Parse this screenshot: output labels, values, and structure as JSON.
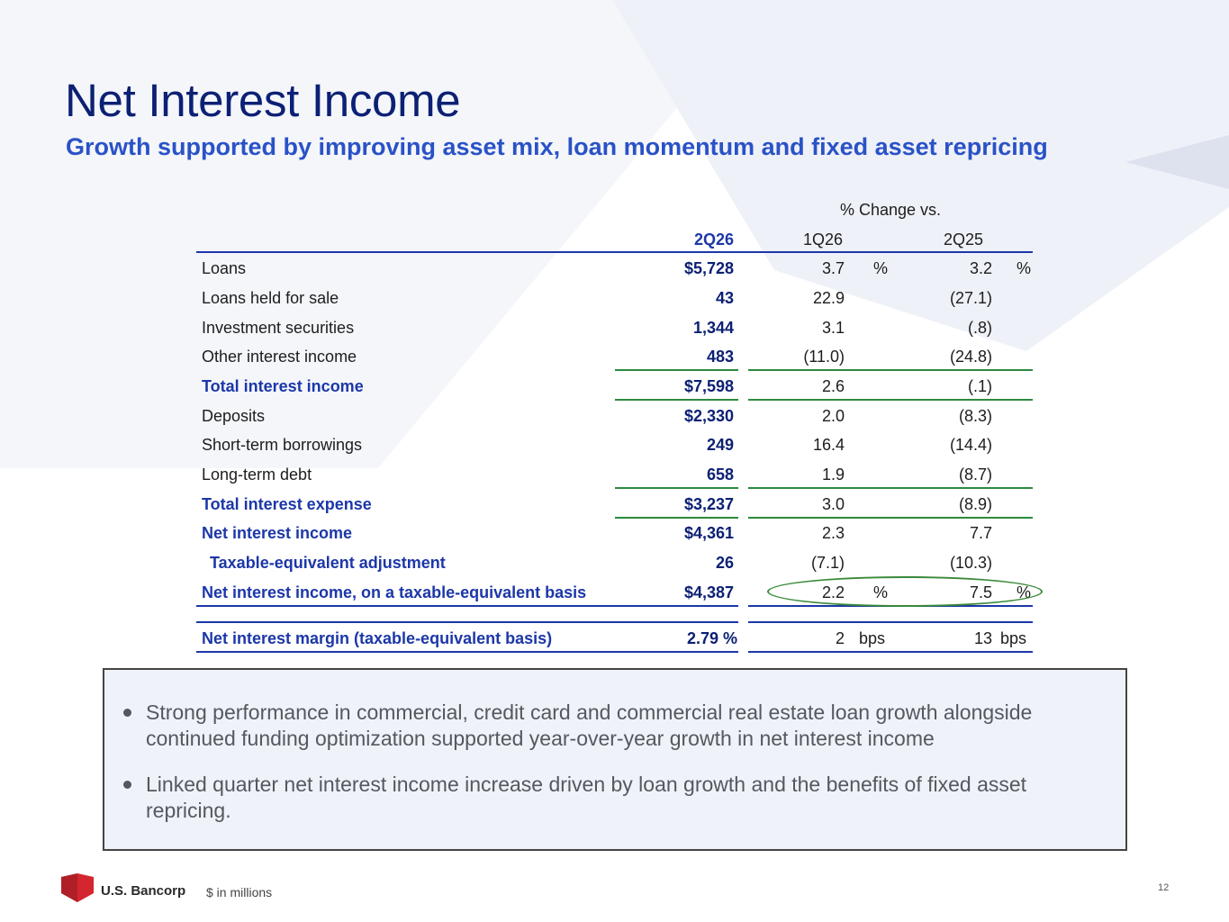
{
  "title": "Net Interest Income",
  "subtitle": "Growth supported by improving asset mix, loan momentum and fixed asset repricing",
  "table": {
    "change_header": "% Change vs.",
    "col_current": "2Q26",
    "col_prior_q": "1Q26",
    "col_prior_y": "2Q25",
    "rows": [
      {
        "label": "Loans",
        "value": "$5,728",
        "chg_q": "3.7",
        "chg_y": "3.2",
        "unit_q": "%",
        "unit_y": "%"
      },
      {
        "label": "Loans held for sale",
        "value": "43",
        "chg_q": "22.9",
        "chg_y": "(27.1)"
      },
      {
        "label": "Investment securities",
        "value": "1,344",
        "chg_q": "3.1",
        "chg_y": "(.8)"
      },
      {
        "label": "Other interest income",
        "value": "483",
        "chg_q": "(11.0)",
        "chg_y": "(24.8)"
      },
      {
        "label": "Total interest income",
        "value": "$7,598",
        "chg_q": "2.6",
        "chg_y": "(.1)"
      },
      {
        "label": "Deposits",
        "value": "$2,330",
        "chg_q": "2.0",
        "chg_y": "(8.3)"
      },
      {
        "label": "Short-term borrowings",
        "value": "249",
        "chg_q": "16.4",
        "chg_y": "(14.4)"
      },
      {
        "label": "Long-term debt",
        "value": "658",
        "chg_q": "1.9",
        "chg_y": "(8.7)"
      },
      {
        "label": "Total interest expense",
        "value": "$3,237",
        "chg_q": "3.0",
        "chg_y": "(8.9)"
      },
      {
        "label": "Net interest income",
        "value": "$4,361",
        "chg_q": "2.3",
        "chg_y": "7.7"
      },
      {
        "label": "Taxable-equivalent adjustment",
        "value": "26",
        "chg_q": "(7.1)",
        "chg_y": "(10.3)"
      },
      {
        "label": "Net interest income, on a taxable-equivalent basis",
        "value": "$4,387",
        "chg_q": "2.2",
        "chg_y": "7.5",
        "unit_q": "%",
        "unit_y": "%"
      }
    ],
    "margin": {
      "label": "Net interest margin (taxable-equivalent basis)",
      "value": "2.79 %",
      "chg_q": "2",
      "chg_y": "13",
      "unit_q": "bps",
      "unit_y": "bps"
    }
  },
  "bullets": [
    "Strong performance in commercial, credit card and commercial real estate loan growth alongside continued funding optimization supported year-over-year growth in net interest income",
    "Linked quarter net interest income increase driven by loan growth and the benefits of fixed asset repricing."
  ],
  "footer": {
    "logo_text": "U.S. Bancorp",
    "note": "$ in millions",
    "page_number": "12"
  },
  "colors": {
    "title": "#0c2074",
    "subtitle": "#2a52c7",
    "accent_blue": "#1c37a8",
    "accent_green": "#2d8a3e"
  }
}
